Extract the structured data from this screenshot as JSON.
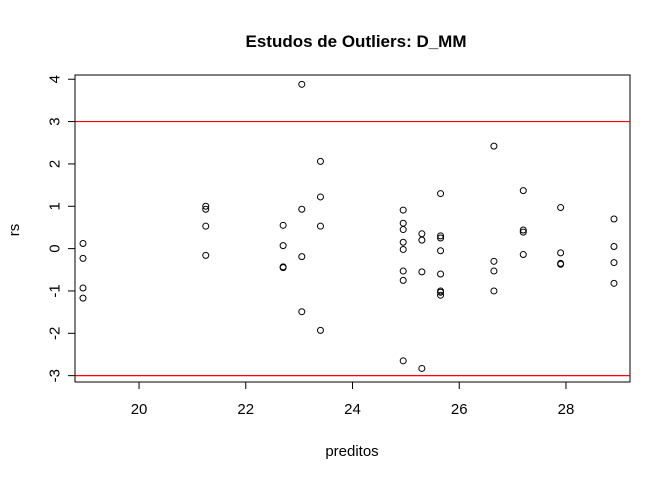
{
  "chart_data": {
    "type": "scatter",
    "title": "Estudos de Outliers:  D_MM",
    "xlabel": "preditos",
    "ylabel": "rs",
    "xlim": [
      18.8,
      29.2
    ],
    "ylim": [
      -3.15,
      4.1
    ],
    "xticks": [
      20,
      22,
      24,
      26,
      28
    ],
    "yticks": [
      -3,
      -2,
      -1,
      0,
      1,
      2,
      3,
      4
    ],
    "reference_lines": [
      {
        "y": 3,
        "color": "#ff0000"
      },
      {
        "y": -3,
        "color": "#ff0000"
      }
    ],
    "grid": false,
    "legend": "none",
    "point_color": "#000000",
    "line_color": "#ff0000",
    "points": [
      {
        "x": 18.95,
        "y": 0.12
      },
      {
        "x": 18.95,
        "y": -0.23
      },
      {
        "x": 18.95,
        "y": -0.93
      },
      {
        "x": 18.95,
        "y": -1.17
      },
      {
        "x": 21.25,
        "y": 1.0
      },
      {
        "x": 21.25,
        "y": 0.93
      },
      {
        "x": 21.25,
        "y": 0.53
      },
      {
        "x": 21.25,
        "y": -0.16
      },
      {
        "x": 22.7,
        "y": 0.55
      },
      {
        "x": 22.7,
        "y": 0.07
      },
      {
        "x": 22.7,
        "y": -0.43
      },
      {
        "x": 22.7,
        "y": -0.45
      },
      {
        "x": 23.05,
        "y": 3.88
      },
      {
        "x": 23.05,
        "y": 0.93
      },
      {
        "x": 23.05,
        "y": -0.19
      },
      {
        "x": 23.05,
        "y": -1.49
      },
      {
        "x": 23.4,
        "y": 2.06
      },
      {
        "x": 23.4,
        "y": 1.22
      },
      {
        "x": 23.4,
        "y": 0.53
      },
      {
        "x": 23.4,
        "y": -1.93
      },
      {
        "x": 24.95,
        "y": 0.91
      },
      {
        "x": 24.95,
        "y": 0.6
      },
      {
        "x": 24.95,
        "y": 0.45
      },
      {
        "x": 24.95,
        "y": 0.15
      },
      {
        "x": 24.95,
        "y": -0.02
      },
      {
        "x": 24.95,
        "y": -0.53
      },
      {
        "x": 24.95,
        "y": -0.75
      },
      {
        "x": 24.95,
        "y": -2.65
      },
      {
        "x": 25.3,
        "y": 0.35
      },
      {
        "x": 25.3,
        "y": 0.2
      },
      {
        "x": 25.3,
        "y": -0.55
      },
      {
        "x": 25.3,
        "y": -2.83
      },
      {
        "x": 25.65,
        "y": 1.3
      },
      {
        "x": 25.65,
        "y": 0.3
      },
      {
        "x": 25.65,
        "y": 0.25
      },
      {
        "x": 25.65,
        "y": -0.05
      },
      {
        "x": 25.65,
        "y": -0.6
      },
      {
        "x": 25.65,
        "y": -1.0
      },
      {
        "x": 25.65,
        "y": -1.03
      },
      {
        "x": 25.65,
        "y": -1.1
      },
      {
        "x": 26.65,
        "y": 2.42
      },
      {
        "x": 26.65,
        "y": -0.3
      },
      {
        "x": 26.65,
        "y": -0.53
      },
      {
        "x": 26.65,
        "y": -1.0
      },
      {
        "x": 27.2,
        "y": 1.37
      },
      {
        "x": 27.2,
        "y": 0.44
      },
      {
        "x": 27.2,
        "y": 0.39
      },
      {
        "x": 27.2,
        "y": -0.14
      },
      {
        "x": 27.9,
        "y": 0.97
      },
      {
        "x": 27.9,
        "y": -0.1
      },
      {
        "x": 27.9,
        "y": -0.35
      },
      {
        "x": 27.9,
        "y": -0.37
      },
      {
        "x": 28.9,
        "y": 0.7
      },
      {
        "x": 28.9,
        "y": 0.05
      },
      {
        "x": 28.9,
        "y": -0.33
      },
      {
        "x": 28.9,
        "y": -0.82
      }
    ]
  }
}
